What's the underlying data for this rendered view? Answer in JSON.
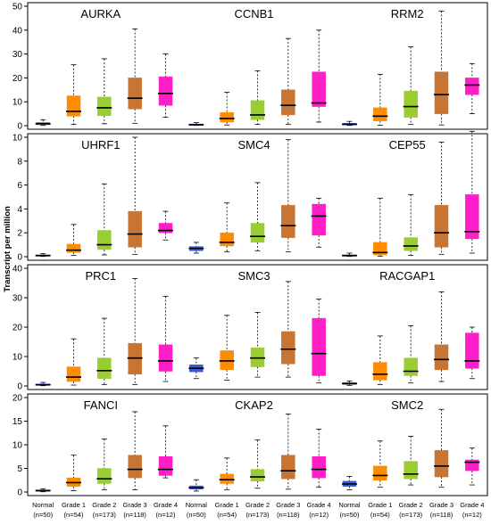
{
  "chart_data": {
    "type": "boxplot",
    "ylabel": "Transcript per million",
    "groups": [
      "Normal",
      "Grade 1",
      "Grade 2",
      "Grade 3",
      "Grade 4"
    ],
    "group_counts": [
      "(n=50)",
      "(n=54)",
      "(n=173)",
      "(n=118)",
      "(n=12)"
    ],
    "colors": {
      "Normal": "#3a5bd0",
      "Grade 1": "#ff8c00",
      "Grade 2": "#9acd32",
      "Grade 3": "#c87533",
      "Grade 4": "#ff1fc8"
    },
    "rows": [
      {
        "ylim": [
          0,
          50
        ],
        "yticks": [
          "0",
          "10",
          "20",
          "30",
          "40",
          "50"
        ],
        "tick_values": [
          0,
          10,
          20,
          30,
          40,
          50
        ],
        "genes": [
          {
            "name": "AURKA",
            "boxes": [
              {
                "min": 0.1,
                "q1": 0.4,
                "median": 0.8,
                "q3": 1.3,
                "max": 2.5
              },
              {
                "min": 0.5,
                "q1": 4,
                "median": 6,
                "q3": 12.5,
                "max": 25.5
              },
              {
                "min": 0.8,
                "q1": 4.2,
                "median": 7.5,
                "q3": 12,
                "max": 28
              },
              {
                "min": 1,
                "q1": 7,
                "median": 11.5,
                "q3": 20,
                "max": 40.5
              },
              {
                "min": 3.5,
                "q1": 8.5,
                "median": 13.5,
                "q3": 20.5,
                "max": 30
              }
            ]
          },
          {
            "name": "CCNB1",
            "boxes": [
              {
                "min": 0.1,
                "q1": 0.2,
                "median": 0.4,
                "q3": 0.7,
                "max": 1.3
              },
              {
                "min": 0.3,
                "q1": 1.5,
                "median": 3,
                "q3": 5.5,
                "max": 14
              },
              {
                "min": 0.5,
                "q1": 2.5,
                "median": 4.5,
                "q3": 10.5,
                "max": 23
              },
              {
                "min": 0.5,
                "q1": 4.5,
                "median": 8.5,
                "q3": 15,
                "max": 36.5
              },
              {
                "min": 1.5,
                "q1": 8,
                "median": 9.5,
                "q3": 22.5,
                "max": 40
              }
            ]
          },
          {
            "name": "RRM2",
            "boxes": [
              {
                "min": 0.1,
                "q1": 0.3,
                "median": 0.6,
                "q3": 1,
                "max": 1.8
              },
              {
                "min": 0.2,
                "q1": 2,
                "median": 4,
                "q3": 7.5,
                "max": 21.5
              },
              {
                "min": 0.5,
                "q1": 3.5,
                "median": 8,
                "q3": 14.5,
                "max": 33
              },
              {
                "min": 0.3,
                "q1": 5,
                "median": 13,
                "q3": 22.5,
                "max": 48
              },
              {
                "min": 5,
                "q1": 13,
                "median": 17,
                "q3": 20,
                "max": 26
              }
            ]
          }
        ]
      },
      {
        "ylim": [
          0,
          10
        ],
        "yticks": [
          "0",
          "2",
          "4",
          "6",
          "8",
          "10"
        ],
        "tick_values": [
          0,
          2,
          4,
          6,
          8,
          10
        ],
        "genes": [
          {
            "name": "UHRF1",
            "boxes": [
              {
                "min": 0.02,
                "q1": 0.05,
                "median": 0.1,
                "q3": 0.15,
                "max": 0.25
              },
              {
                "min": 0.1,
                "q1": 0.35,
                "median": 0.55,
                "q3": 1.05,
                "max": 2.7
              },
              {
                "min": 0.15,
                "q1": 0.6,
                "median": 1,
                "q3": 2.2,
                "max": 6.1
              },
              {
                "min": 0.2,
                "q1": 0.8,
                "median": 1.9,
                "q3": 3.8,
                "max": 10
              },
              {
                "min": 1.4,
                "q1": 2,
                "median": 2.2,
                "q3": 2.8,
                "max": 3.8
              }
            ]
          },
          {
            "name": "SMC4",
            "boxes": [
              {
                "min": 0.3,
                "q1": 0.5,
                "median": 0.7,
                "q3": 0.85,
                "max": 1.2
              },
              {
                "min": 0.4,
                "q1": 0.9,
                "median": 1.2,
                "q3": 2,
                "max": 4.5
              },
              {
                "min": 0.5,
                "q1": 1.2,
                "median": 1.7,
                "q3": 2.8,
                "max": 6.2
              },
              {
                "min": 0.4,
                "q1": 1.6,
                "median": 2.6,
                "q3": 4.3,
                "max": 9.8
              },
              {
                "min": 0.8,
                "q1": 1.8,
                "median": 3.4,
                "q3": 4.4,
                "max": 4.9
              }
            ]
          },
          {
            "name": "CEP55",
            "boxes": [
              {
                "min": 0.02,
                "q1": 0.05,
                "median": 0.1,
                "q3": 0.15,
                "max": 0.3
              },
              {
                "min": 0.05,
                "q1": 0.15,
                "median": 0.35,
                "q3": 1.2,
                "max": 4.9
              },
              {
                "min": 0.1,
                "q1": 0.5,
                "median": 0.9,
                "q3": 1.6,
                "max": 5.2
              },
              {
                "min": 0.2,
                "q1": 0.8,
                "median": 2,
                "q3": 4.3,
                "max": 9.6
              },
              {
                "min": 0.3,
                "q1": 1.5,
                "median": 2.1,
                "q3": 5.2,
                "max": 10.5
              }
            ]
          }
        ]
      },
      {
        "ylim": [
          0,
          40
        ],
        "yticks": [
          "0",
          "10",
          "20",
          "30",
          "40"
        ],
        "tick_values": [
          0,
          10,
          20,
          30,
          40
        ],
        "genes": [
          {
            "name": "PRC1",
            "boxes": [
              {
                "min": 0.1,
                "q1": 0.2,
                "median": 0.4,
                "q3": 0.7,
                "max": 1.2
              },
              {
                "min": 0.3,
                "q1": 1.5,
                "median": 3,
                "q3": 6.5,
                "max": 16
              },
              {
                "min": 0.5,
                "q1": 2.5,
                "median": 5.2,
                "q3": 9.5,
                "max": 23
              },
              {
                "min": 0.5,
                "q1": 4,
                "median": 9.5,
                "q3": 14.5,
                "max": 36.5
              },
              {
                "min": 1.5,
                "q1": 5,
                "median": 8.5,
                "q3": 14,
                "max": 30.5
              }
            ]
          },
          {
            "name": "SMC3",
            "boxes": [
              {
                "min": 2.5,
                "q1": 4.8,
                "median": 6,
                "q3": 7.2,
                "max": 9.5
              },
              {
                "min": 2,
                "q1": 5.5,
                "median": 8.5,
                "q3": 12,
                "max": 24
              },
              {
                "min": 3,
                "q1": 6.5,
                "median": 9.5,
                "q3": 13,
                "max": 25
              },
              {
                "min": 3,
                "q1": 7.5,
                "median": 12.5,
                "q3": 18.5,
                "max": 35.5
              },
              {
                "min": 1,
                "q1": 3.5,
                "median": 11,
                "q3": 23,
                "max": 29.5
              }
            ]
          },
          {
            "name": "RACGAP1",
            "boxes": [
              {
                "min": 0.2,
                "q1": 0.5,
                "median": 0.8,
                "q3": 1.1,
                "max": 1.7
              },
              {
                "min": 0.5,
                "q1": 2,
                "median": 4,
                "q3": 8,
                "max": 17
              },
              {
                "min": 1,
                "q1": 3.5,
                "median": 5,
                "q3": 9.5,
                "max": 20.5
              },
              {
                "min": 1.5,
                "q1": 5.5,
                "median": 9,
                "q3": 14,
                "max": 32
              },
              {
                "min": 2.5,
                "q1": 6,
                "median": 8.5,
                "q3": 18,
                "max": 20
              }
            ]
          }
        ]
      },
      {
        "ylim": [
          0,
          20
        ],
        "yticks": [
          "0",
          "5",
          "10",
          "15",
          "20"
        ],
        "tick_values": [
          0,
          5,
          10,
          15,
          20
        ],
        "genes": [
          {
            "name": "FANCI",
            "boxes": [
              {
                "min": 0.05,
                "q1": 0.15,
                "median": 0.3,
                "q3": 0.45,
                "max": 0.7
              },
              {
                "min": 0.3,
                "q1": 1.2,
                "median": 2,
                "q3": 3,
                "max": 7.8
              },
              {
                "min": 0.5,
                "q1": 1.8,
                "median": 2.8,
                "q3": 5,
                "max": 11.2
              },
              {
                "min": 0.5,
                "q1": 3,
                "median": 4.8,
                "q3": 7.8,
                "max": 17
              },
              {
                "min": 3,
                "q1": 3.5,
                "median": 4.8,
                "q3": 7.5,
                "max": 14
              }
            ]
          },
          {
            "name": "CKAP2",
            "boxes": [
              {
                "min": 0.2,
                "q1": 0.6,
                "median": 0.9,
                "q3": 1.3,
                "max": 2.6
              },
              {
                "min": 0.5,
                "q1": 1.8,
                "median": 2.6,
                "q3": 3.8,
                "max": 7.2
              },
              {
                "min": 0.8,
                "q1": 2.3,
                "median": 3.2,
                "q3": 4.8,
                "max": 11
              },
              {
                "min": 0.6,
                "q1": 2.8,
                "median": 4.5,
                "q3": 7.8,
                "max": 16.5
              },
              {
                "min": 1,
                "q1": 3,
                "median": 4.8,
                "q3": 7.5,
                "max": 13.3
              }
            ]
          },
          {
            "name": "SMC2",
            "boxes": [
              {
                "min": 0.5,
                "q1": 1.2,
                "median": 1.7,
                "q3": 2.3,
                "max": 3.3
              },
              {
                "min": 1,
                "q1": 2.5,
                "median": 3.5,
                "q3": 5.5,
                "max": 10.8
              },
              {
                "min": 1.5,
                "q1": 2.8,
                "median": 3.8,
                "q3": 6.5,
                "max": 11.8
              },
              {
                "min": 1,
                "q1": 3.2,
                "median": 5.5,
                "q3": 8.8,
                "max": 17.5
              },
              {
                "min": 1.5,
                "q1": 4.5,
                "median": 6.3,
                "q3": 6.8,
                "max": 9.3
              }
            ]
          }
        ]
      }
    ]
  }
}
